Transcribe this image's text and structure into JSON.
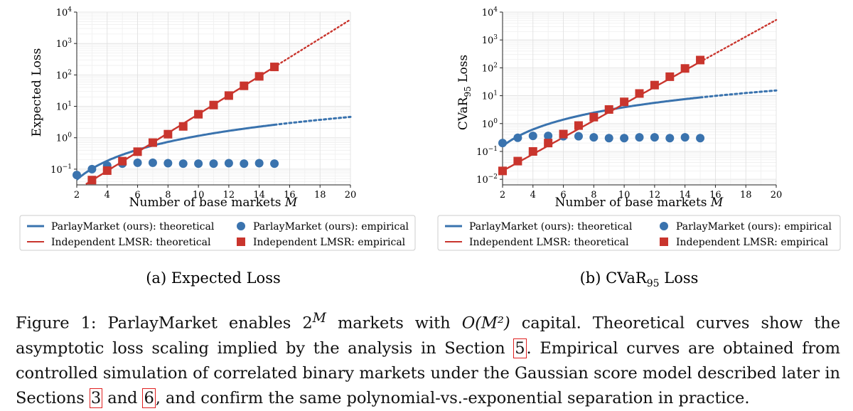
{
  "figure": {
    "subcaptions": [
      "(a) Expected Loss",
      "(b) CVaR95 Loss"
    ],
    "caption": {
      "label": "Figure 1:",
      "part1": "ParlayMarket enables 2",
      "sup_m": "M",
      "part2": " markets with ",
      "o_expr": "O(M²)",
      "part3": " capital. Theoretical curves show the asymptotic loss scaling implied by the analysis in Section ",
      "ref5": "5",
      "part4": ". Empirical curves are obtained from controlled simulation of correlated binary markets under the Gaussian score model described later in Sections ",
      "ref3": "3",
      "and": " and ",
      "ref6": "6",
      "part5": ", and confirm the same polynomial-vs.-exponential separation in practice."
    }
  },
  "legend": {
    "pm_theoretical": "ParlayMarket (ours): theoretical",
    "pm_empirical": "ParlayMarket (ours): empirical",
    "lmsr_theoretical": "Independent LMSR: theoretical",
    "lmsr_empirical": "Independent LMSR: empirical"
  },
  "colors": {
    "blue": "#3a73ae",
    "red": "#c9352d",
    "grid": "#e6e6e6"
  },
  "chart_data": [
    {
      "type": "line",
      "title": "(a) Expected Loss",
      "xlabel": "Number of base markets M",
      "ylabel": "Expected Loss",
      "yscale": "log",
      "xlim": [
        2,
        20
      ],
      "ylim_log10": [
        -1.5,
        4
      ],
      "xticks": [
        2,
        4,
        6,
        8,
        10,
        12,
        14,
        16,
        18,
        20
      ],
      "yticks": [
        {
          "exp": -1,
          "label": "10",
          "sup": "−1"
        },
        {
          "exp": 0,
          "label": "10",
          "sup": "0"
        },
        {
          "exp": 1,
          "label": "10",
          "sup": "1"
        },
        {
          "exp": 2,
          "label": "10",
          "sup": "2"
        },
        {
          "exp": 3,
          "label": "10",
          "sup": "3"
        },
        {
          "exp": 4,
          "label": "10",
          "sup": "4"
        }
      ],
      "grid": true,
      "series": [
        {
          "name": "ParlayMarket (ours): theoretical",
          "kind": "line",
          "color": "blue",
          "model": "0.0115*M^2",
          "solid_until": 15
        },
        {
          "name": "Independent LMSR: theoretical",
          "kind": "line",
          "color": "red",
          "model": "0.0055*2^M",
          "solid_until": 15
        },
        {
          "name": "ParlayMarket (ours): empirical",
          "kind": "circle",
          "color": "blue",
          "x": [
            2,
            3,
            4,
            5,
            6,
            7,
            8,
            9,
            10,
            11,
            12,
            13,
            14,
            15
          ],
          "y": [
            0.065,
            0.1,
            0.13,
            0.15,
            0.16,
            0.16,
            0.155,
            0.15,
            0.15,
            0.15,
            0.155,
            0.15,
            0.155,
            0.15
          ]
        },
        {
          "name": "Independent LMSR: empirical",
          "kind": "square",
          "color": "red",
          "x": [
            3,
            4,
            5,
            6,
            7,
            8,
            9,
            10,
            11,
            12,
            13,
            14,
            15
          ],
          "y": [
            0.045,
            0.09,
            0.18,
            0.36,
            0.7,
            1.3,
            2.3,
            5.6,
            11,
            22,
            45,
            90,
            180
          ]
        }
      ]
    },
    {
      "type": "line",
      "title": "(b) CVaR95 Loss",
      "xlabel": "Number of base markets M",
      "ylabel": "CVaR95 Loss",
      "yscale": "log",
      "xlim": [
        2,
        20
      ],
      "ylim_log10": [
        -2.2,
        4
      ],
      "xticks": [
        2,
        4,
        6,
        8,
        10,
        12,
        14,
        16,
        18,
        20
      ],
      "yticks": [
        {
          "exp": -2,
          "label": "10",
          "sup": "−2"
        },
        {
          "exp": -1,
          "label": "10",
          "sup": "−1"
        },
        {
          "exp": 0,
          "label": "10",
          "sup": "0"
        },
        {
          "exp": 1,
          "label": "10",
          "sup": "1"
        },
        {
          "exp": 2,
          "label": "10",
          "sup": "2"
        },
        {
          "exp": 3,
          "label": "10",
          "sup": "3"
        },
        {
          "exp": 4,
          "label": "10",
          "sup": "4"
        }
      ],
      "grid": true,
      "series": [
        {
          "name": "ParlayMarket (ours): theoretical",
          "kind": "line",
          "color": "blue",
          "model": "0.0385*M^2",
          "solid_until": 15
        },
        {
          "name": "Independent LMSR: theoretical",
          "kind": "line",
          "color": "red",
          "model": "0.005*2^M",
          "solid_until": 15
        },
        {
          "name": "ParlayMarket (ours): empirical",
          "kind": "circle",
          "color": "blue",
          "x": [
            2,
            3,
            4,
            5,
            6,
            7,
            8,
            9,
            10,
            11,
            12,
            13,
            14,
            15
          ],
          "y": [
            0.2,
            0.31,
            0.36,
            0.36,
            0.35,
            0.35,
            0.32,
            0.3,
            0.3,
            0.32,
            0.32,
            0.3,
            0.32,
            0.3
          ]
        },
        {
          "name": "Independent LMSR: empirical",
          "kind": "square",
          "color": "red",
          "x": [
            2,
            3,
            4,
            5,
            6,
            7,
            8,
            9,
            10,
            11,
            12,
            13,
            14,
            15
          ],
          "y": [
            0.02,
            0.045,
            0.1,
            0.2,
            0.42,
            0.85,
            1.7,
            3.2,
            6,
            12,
            24,
            48,
            95,
            190
          ]
        }
      ]
    }
  ]
}
